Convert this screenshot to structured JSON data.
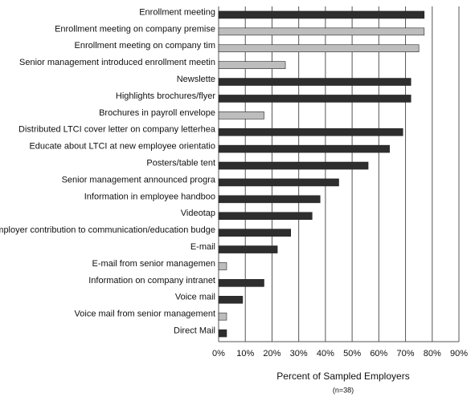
{
  "chart_data": {
    "type": "hbar",
    "x_label": "Percent of Sampled Employers",
    "subtitle": "(n=38)",
    "categories": [
      "Enrollment meeting",
      "Enrollment meeting on company premise",
      "Enrollment meeting on company tim",
      "Senior management introduced enrollment meetin",
      "Newslette",
      "Highlights brochures/flyer",
      "Brochures in payroll envelope",
      "Distributed LTCI cover letter on company letterhea",
      "Educate about LTCI at new employee orientatio",
      "Posters/table tent",
      "Senior management announced progra",
      "Information in employee handboo",
      "Videotap",
      "Employer contribution to communication/education budge",
      "E-mail",
      "E-mail from senior managemen",
      "Information on company intranet",
      "Voice mail",
      "Voice mail from senior management",
      "Direct Mail"
    ],
    "values": [
      77,
      77,
      75,
      25,
      72,
      72,
      17,
      69,
      64,
      56,
      45,
      38,
      35,
      27,
      22,
      3,
      17,
      9,
      3,
      3
    ],
    "colors": [
      "#2e2e2e",
      "#bdbdbd",
      "#bdbdbd",
      "#bdbdbd",
      "#2e2e2e",
      "#2e2e2e",
      "#bdbdbd",
      "#2e2e2e",
      "#2e2e2e",
      "#2e2e2e",
      "#2e2e2e",
      "#2e2e2e",
      "#2e2e2e",
      "#2e2e2e",
      "#2e2e2e",
      "#bdbdbd",
      "#2e2e2e",
      "#2e2e2e",
      "#bdbdbd",
      "#2e2e2e"
    ],
    "xlim": [
      0,
      90
    ],
    "xticks": [
      {
        "value": 0,
        "label": "0%"
      },
      {
        "value": 10,
        "label": "10%"
      },
      {
        "value": 20,
        "label": "20%"
      },
      {
        "value": 30,
        "label": "30%"
      },
      {
        "value": 40,
        "label": "40%"
      },
      {
        "value": 50,
        "label": "50%"
      },
      {
        "value": 60,
        "label": "60%"
      },
      {
        "value": 70,
        "label": "70%"
      },
      {
        "value": 80,
        "label": "80%"
      },
      {
        "value": 90,
        "label": "90%"
      }
    ],
    "grid": true
  }
}
